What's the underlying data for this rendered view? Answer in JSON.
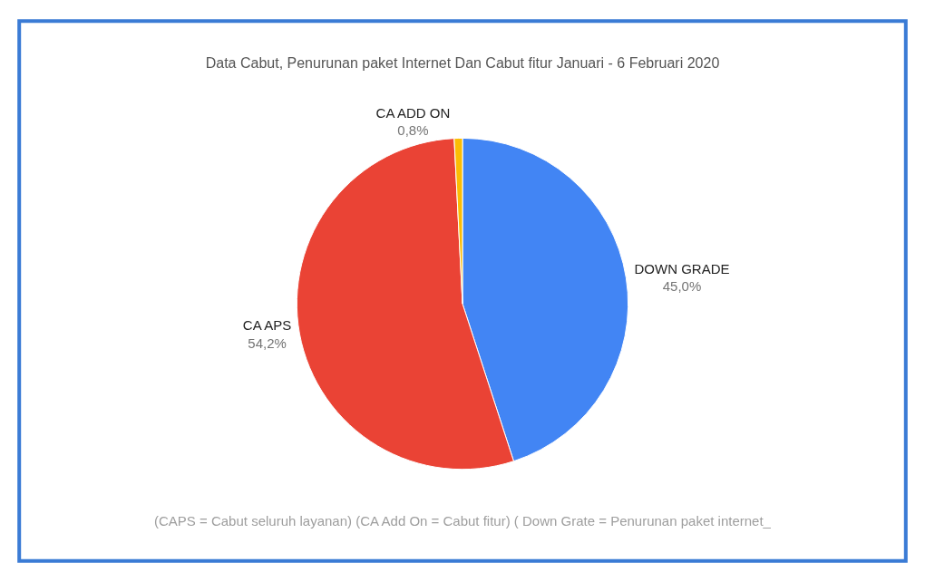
{
  "chart_data": {
    "type": "pie",
    "title": "Data Cabut, Penurunan paket Internet Dan Cabut fitur Januari - 6 Februari 2020",
    "categories": [
      "DOWN GRADE",
      "CA APS",
      "CA ADD ON"
    ],
    "values": [
      45.0,
      54.2,
      0.8
    ],
    "value_labels": [
      "45,0%",
      "54,2%",
      "0,8%"
    ],
    "colors": [
      "#4285f4",
      "#ea4335",
      "#fbbc04"
    ],
    "legend": false,
    "annotations": [
      "(CAPS = Cabut seluruh layanan) (CA Add On = Cabut fitur) ( Down Grate = Penurunan paket internet_"
    ]
  }
}
